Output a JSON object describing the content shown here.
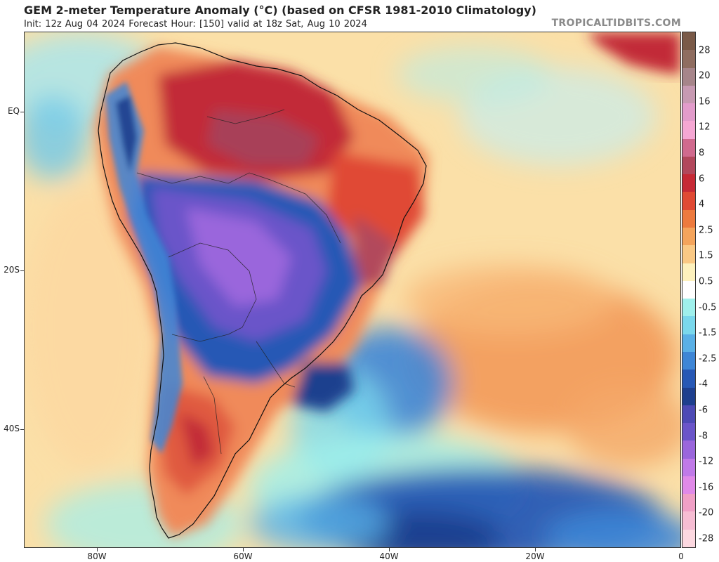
{
  "header": {
    "title": "GEM 2-meter Temperature Anomaly (°C) (based on CFSR 1981-2010 Climatology)",
    "subtitle": "Init: 12z Aug 04 2024   Forecast Hour: [150]   valid at 18z Sat, Aug 10 2024",
    "brand": "TROPICALTIDBITS.COM"
  },
  "axes": {
    "lat_labels": [
      "EQ",
      "20S",
      "40S"
    ],
    "lon_labels": [
      "80W",
      "60W",
      "40W",
      "20W",
      "0"
    ]
  },
  "colorbar": {
    "labels": [
      "28",
      "20",
      "16",
      "12",
      "8",
      "6",
      "4",
      "2.5",
      "1.5",
      "0.5",
      "-0.5",
      "-1.5",
      "-2.5",
      "-4",
      "-6",
      "-8",
      "-12",
      "-16",
      "-20",
      "-28"
    ],
    "colors": [
      "#7a5a48",
      "#8f6d60",
      "#a6858a",
      "#c79ab2",
      "#e29ccb",
      "#f5a7d3",
      "#d06a8e",
      "#b2485c",
      "#c62a36",
      "#e04a34",
      "#ed7a3e",
      "#f4a45c",
      "#fac985",
      "#fdf1bd",
      "#ffffff",
      "#9ff0ec",
      "#7ad8ec",
      "#5ab0e6",
      "#3e86d6",
      "#2758b5",
      "#1e3f8e",
      "#4d4ab5",
      "#6a55c9",
      "#9a66dc",
      "#c07ae8",
      "#e08ae8",
      "#f0a0c6",
      "#f6bdd3",
      "#fcd8e0"
    ]
  }
}
